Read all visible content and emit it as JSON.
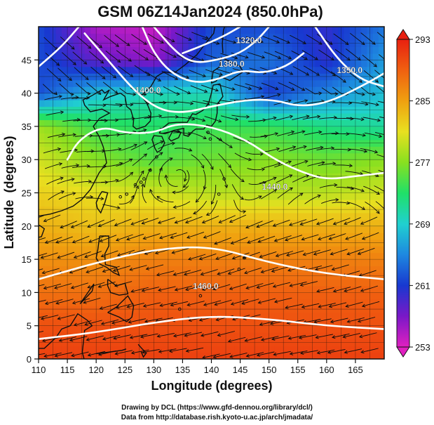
{
  "chart_data": {
    "type": "heatmap",
    "title": "GSM 06Z14Jan2024 (850.0hPa)",
    "xlabel": "Longitude (degrees)",
    "ylabel": "Latitude  (degrees)",
    "xlim": [
      110,
      170
    ],
    "ylim": [
      0,
      50
    ],
    "x_ticks": [
      "110",
      "115",
      "120",
      "125",
      "130",
      "135",
      "140",
      "145",
      "150",
      "155",
      "160",
      "165"
    ],
    "y_ticks": [
      "0",
      "5",
      "10",
      "15",
      "20",
      "25",
      "30",
      "35",
      "40",
      "45"
    ],
    "grid": true,
    "colorbar": {
      "position": "right",
      "min": 253,
      "max": 293,
      "ticks": [
        "253",
        "261",
        "269",
        "277",
        "285",
        "293"
      ],
      "colors": [
        "#e020c0",
        "#7a18c8",
        "#1838d0",
        "#1e88e0",
        "#20d0d0",
        "#20e068",
        "#88e020",
        "#e8e020",
        "#f0a010",
        "#f06010",
        "#e82010"
      ]
    },
    "temperature_field": {
      "lat": [
        0,
        5,
        10,
        15,
        20,
        25,
        30,
        35,
        40,
        45,
        50
      ],
      "lon": [
        110,
        120,
        130,
        140,
        150,
        160,
        170
      ],
      "values": [
        [
          291,
          291,
          291,
          291,
          291,
          291,
          291
        ],
        [
          290,
          290,
          290,
          290,
          290,
          290,
          290
        ],
        [
          288,
          288,
          289,
          289,
          289,
          289,
          289
        ],
        [
          286,
          286,
          287,
          287,
          287,
          287,
          287
        ],
        [
          284,
          283,
          284,
          284,
          284,
          284,
          284
        ],
        [
          282,
          281,
          280,
          279,
          279,
          279,
          280
        ],
        [
          280,
          277,
          275,
          276,
          277,
          276,
          277
        ],
        [
          278,
          274,
          273,
          274,
          274,
          272,
          271
        ],
        [
          262,
          268,
          270,
          270,
          261,
          265,
          268
        ],
        [
          262,
          258,
          256,
          263,
          264,
          260,
          266
        ],
        [
          262,
          255,
          254,
          262,
          262,
          260,
          264
        ]
      ]
    },
    "height_contours": {
      "labels": [
        "1320.0",
        "1380.0",
        "1400.0",
        "1440.0",
        "1460.0",
        "1350.0"
      ]
    },
    "wind_streamlines": true
  },
  "credits": {
    "line1": "Drawing by DCL (https://www.gfd-dennou.org/library/dcl/)",
    "line2": "Data from http://database.rish.kyoto-u.ac.jp/arch/jmadata/"
  }
}
